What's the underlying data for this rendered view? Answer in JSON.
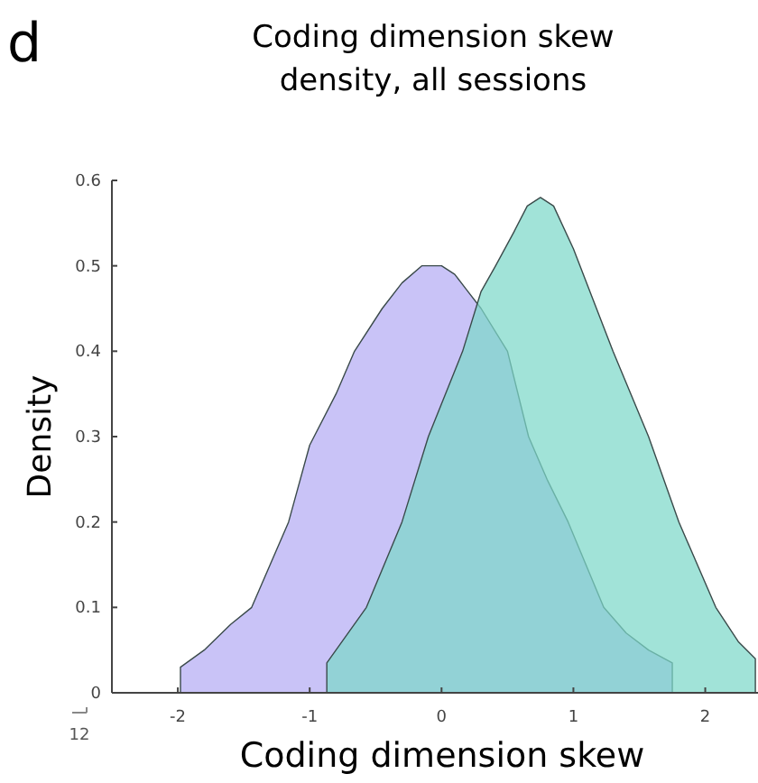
{
  "chart_data": {
    "type": "area",
    "title": "Coding dimension skew density, all sessions",
    "xlabel": "Coding dimension skew",
    "ylabel": "Density",
    "annotations": [
      "d",
      "12"
    ],
    "xlim": [
      -2.5,
      2.4
    ],
    "xticks": [
      -2,
      -1,
      0,
      1,
      2
    ],
    "ylim": [
      0,
      0.6
    ],
    "yticks": [
      0,
      0.1,
      0.2,
      0.3,
      0.4,
      0.5,
      0.6
    ],
    "grid": false,
    "series": [
      {
        "color": "#c9c3f7",
        "x": [
          -1.98,
          -1.98,
          -1.8,
          -1.6,
          -1.44,
          -1.3,
          -1.16,
          -1.0,
          -0.8,
          -0.66,
          -0.45,
          -0.3,
          -0.15,
          0,
          0.1,
          0.2,
          0.3,
          0.5,
          0.66,
          0.8,
          0.96,
          1.23,
          1.4,
          1.57,
          1.75,
          1.75
        ],
        "values": [
          0,
          0.03,
          0.05,
          0.08,
          0.1,
          0.15,
          0.2,
          0.29,
          0.35,
          0.4,
          0.45,
          0.48,
          0.5,
          0.5,
          0.49,
          0.47,
          0.45,
          0.4,
          0.3,
          0.25,
          0.2,
          0.1,
          0.07,
          0.05,
          0.035,
          0
        ]
      },
      {
        "color": "#7dd8c9",
        "x": [
          -0.87,
          -0.87,
          -0.57,
          -0.3,
          -0.1,
          0.16,
          0.3,
          0.41,
          0.55,
          0.65,
          0.75,
          0.85,
          1.0,
          1.15,
          1.3,
          1.57,
          1.8,
          2.08,
          2.25,
          2.38,
          2.38
        ],
        "values": [
          0,
          0.035,
          0.1,
          0.2,
          0.3,
          0.4,
          0.47,
          0.5,
          0.54,
          0.57,
          0.58,
          0.57,
          0.52,
          0.46,
          0.4,
          0.3,
          0.2,
          0.1,
          0.06,
          0.04,
          0
        ]
      }
    ]
  }
}
